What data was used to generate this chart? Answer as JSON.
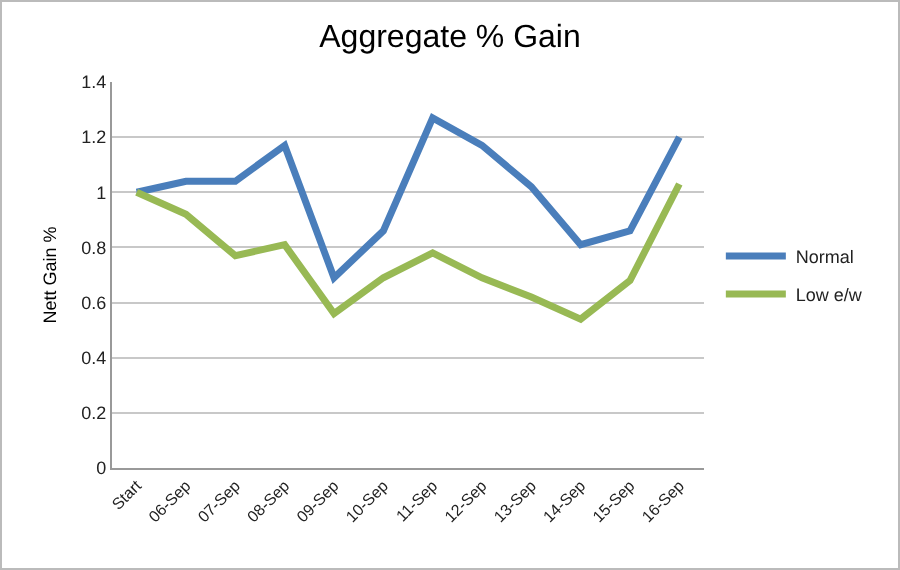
{
  "chart_data": {
    "type": "line",
    "title": "Aggregate % Gain",
    "ylabel": "Nett Gain %",
    "categories": [
      "Start",
      "06-Sep",
      "07-Sep",
      "08-Sep",
      "09-Sep",
      "10-Sep",
      "11-Sep",
      "12-Sep",
      "13-Sep",
      "14-Sep",
      "15-Sep",
      "16-Sep"
    ],
    "series": [
      {
        "name": "Normal",
        "color": "#4a7ebb",
        "values": [
          1.0,
          1.04,
          1.04,
          1.17,
          0.69,
          0.86,
          1.27,
          1.17,
          1.02,
          0.81,
          0.86,
          1.2
        ]
      },
      {
        "name": "Low e/w",
        "color": "#98b954",
        "values": [
          1.0,
          0.92,
          0.77,
          0.81,
          0.56,
          0.69,
          0.78,
          0.69,
          0.62,
          0.54,
          0.68,
          1.03
        ]
      }
    ],
    "ylim": [
      0,
      1.4
    ],
    "yticks": [
      0,
      0.2,
      0.4,
      0.6,
      0.8,
      1,
      1.2,
      1.4
    ],
    "grid": "y",
    "legend": "right",
    "marker": "none",
    "line_style": "solid"
  }
}
